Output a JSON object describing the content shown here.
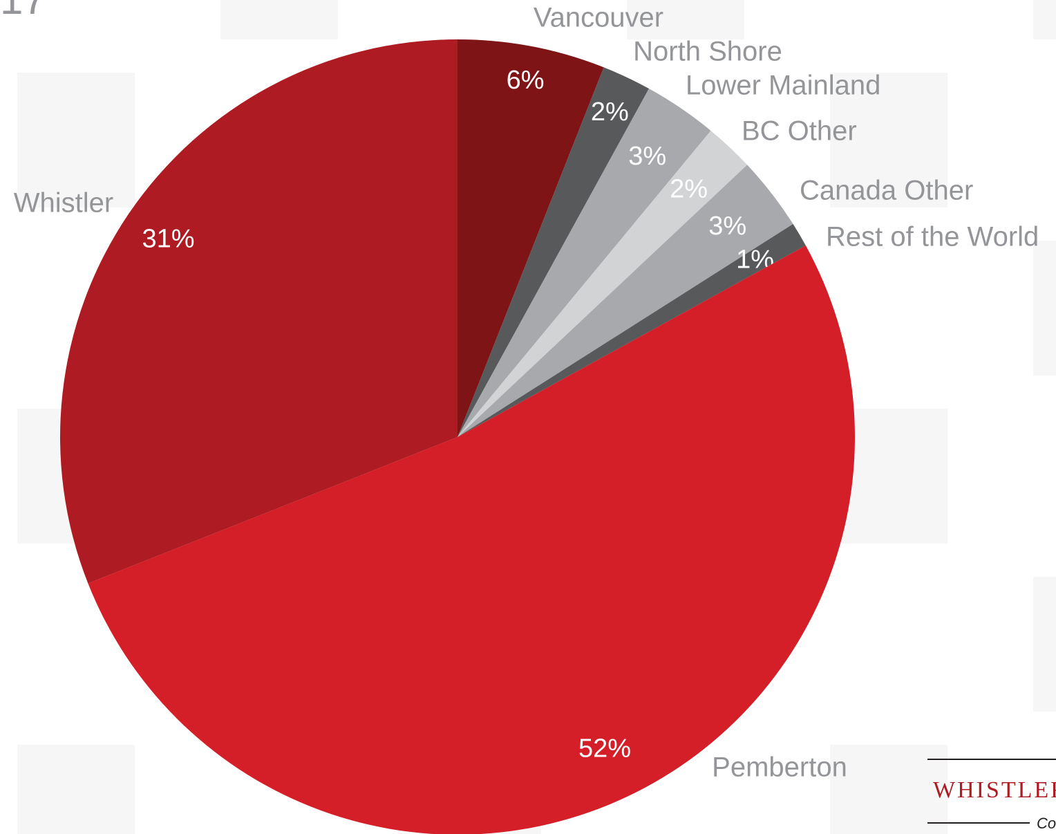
{
  "chart_data": {
    "type": "pie",
    "header_fragment": "17",
    "footer_logo": "WHISTLER",
    "footer_tagline": "Co",
    "categories": [
      "Vancouver",
      "North Shore",
      "Lower Mainland",
      "BC Other",
      "Canada Other",
      "Rest of the World",
      "Pemberton",
      "Whistler"
    ],
    "values": [
      6,
      2,
      3,
      2,
      3,
      1,
      52,
      31
    ],
    "value_labels": [
      "6%",
      "2%",
      "3%",
      "2%",
      "3%",
      "1%",
      "52%",
      "31%"
    ],
    "colors": [
      "#7f1417",
      "#58595b",
      "#a7a9ac",
      "#d1d3d4",
      "#a7a9ac",
      "#58595b",
      "#d41f29",
      "#ae1b22"
    ]
  }
}
